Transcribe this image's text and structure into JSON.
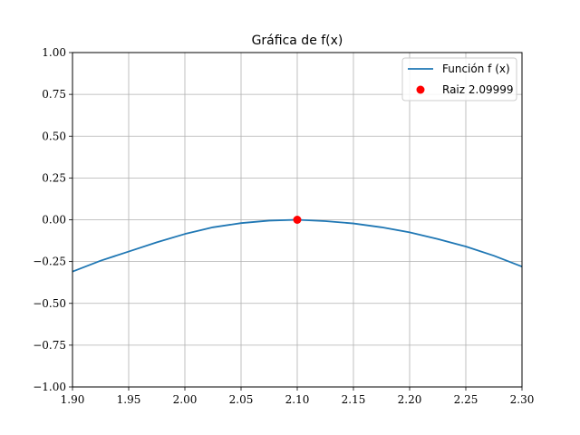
{
  "chart_data": {
    "type": "line",
    "title": "Gráfica de f(x)",
    "xlabel": "",
    "ylabel": "",
    "xlim": [
      1.9,
      2.3
    ],
    "ylim": [
      -1.0,
      1.0
    ],
    "grid": true,
    "legend_position": "top-right",
    "x_ticks": [
      1.9,
      1.95,
      2.0,
      2.05,
      2.1,
      2.15,
      2.2,
      2.25,
      2.3
    ],
    "x_tick_labels": [
      "1.90",
      "1.95",
      "2.00",
      "2.05",
      "2.10",
      "2.15",
      "2.20",
      "2.25",
      "2.30"
    ],
    "y_ticks": [
      -1.0,
      -0.75,
      -0.5,
      -0.25,
      0.0,
      0.25,
      0.5,
      0.75,
      1.0
    ],
    "y_tick_labels": [
      "−1.00",
      "−0.75",
      "−0.50",
      "−0.25",
      "0.00",
      "0.25",
      "0.50",
      "0.75",
      "1.00"
    ],
    "series": [
      {
        "name": "Función f (x)",
        "kind": "line",
        "color": "#1f77b4",
        "x": [
          1.9,
          1.925,
          1.95,
          1.975,
          2.0,
          2.025,
          2.05,
          2.075,
          2.1,
          2.125,
          2.15,
          2.175,
          2.2,
          2.225,
          2.25,
          2.275,
          2.3
        ],
        "y": [
          -0.31,
          -0.245,
          -0.19,
          -0.135,
          -0.085,
          -0.045,
          -0.02,
          -0.005,
          0.0,
          -0.008,
          -0.022,
          -0.045,
          -0.075,
          -0.115,
          -0.16,
          -0.215,
          -0.28
        ]
      },
      {
        "name": "Raiz 2.09999",
        "kind": "point",
        "color": "#ff0000",
        "x": [
          2.09999
        ],
        "y": [
          0.0
        ]
      }
    ]
  }
}
